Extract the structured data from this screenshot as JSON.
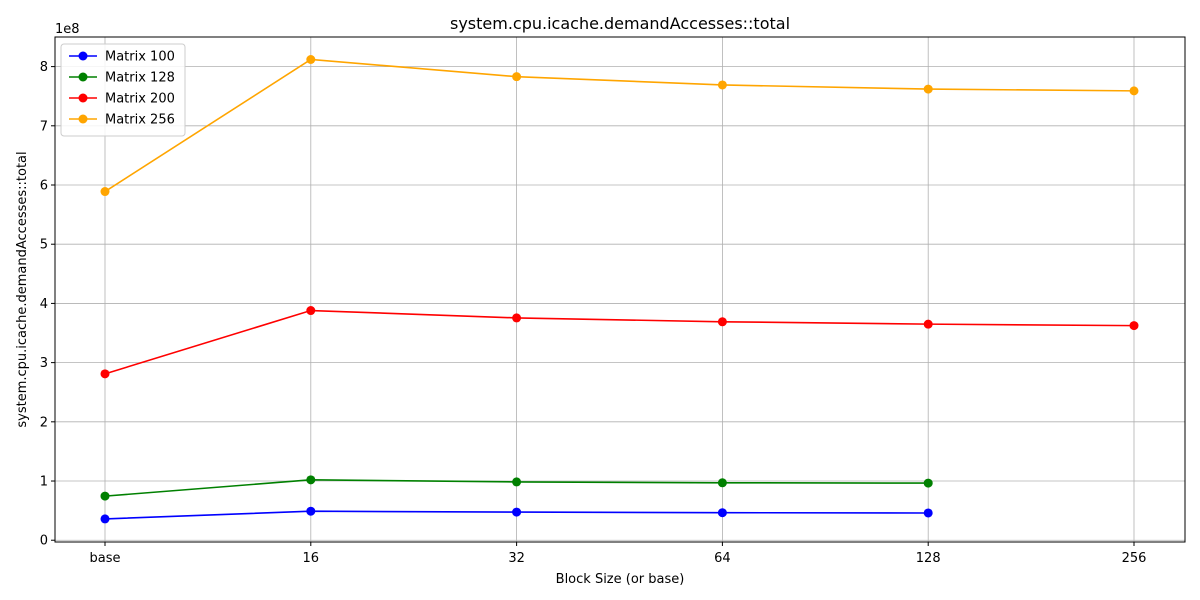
{
  "chart_data": {
    "type": "line",
    "title": "system.cpu.icache.demandAccesses::total",
    "xlabel": "Block Size (or base)",
    "ylabel": "system.cpu.icache.demandAccesses::total",
    "y_multiplier_label": "1e8",
    "categories": [
      "base",
      "16",
      "32",
      "64",
      "128",
      "256"
    ],
    "ylim": [
      -0.03,
      8.5
    ],
    "yticks": [
      0,
      1,
      2,
      3,
      4,
      5,
      6,
      7,
      8
    ],
    "ytick_labels": [
      "0",
      "1",
      "2",
      "3",
      "4",
      "5",
      "6",
      "7",
      "8"
    ],
    "grid": true,
    "legend_position": "top-left",
    "series": [
      {
        "name": "Matrix 100",
        "color": "#0000ff",
        "values": [
          0.36,
          0.49,
          0.475,
          0.465,
          0.46,
          null
        ]
      },
      {
        "name": "Matrix 128",
        "color": "#008000",
        "values": [
          0.745,
          1.02,
          0.985,
          0.97,
          0.965,
          null
        ]
      },
      {
        "name": "Matrix 200",
        "color": "#ff0000",
        "values": [
          2.81,
          3.88,
          3.755,
          3.69,
          3.65,
          3.625
        ]
      },
      {
        "name": "Matrix 256",
        "color": "#ffa500",
        "values": [
          5.89,
          8.12,
          7.83,
          7.69,
          7.62,
          7.59
        ]
      }
    ]
  }
}
